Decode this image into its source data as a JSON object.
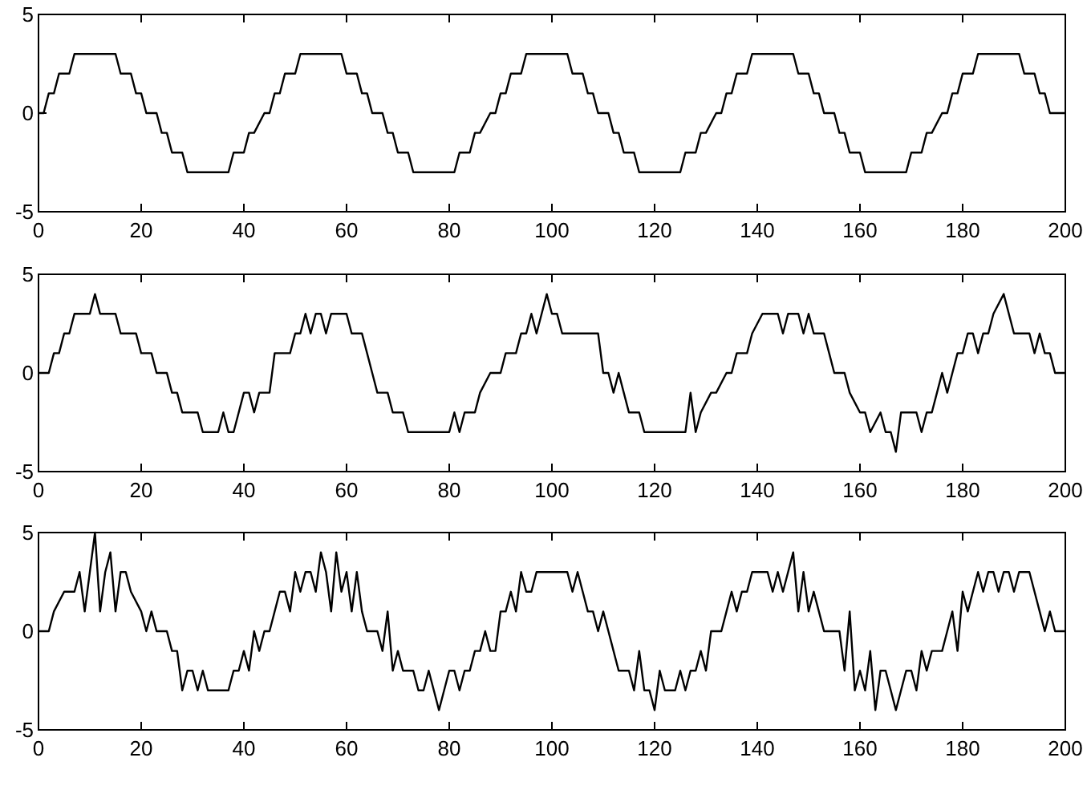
{
  "chart_data": [
    {
      "type": "line",
      "xlim": [
        0,
        200
      ],
      "ylim": [
        -5,
        5
      ],
      "xticks": [
        0,
        20,
        40,
        60,
        80,
        100,
        120,
        140,
        160,
        180,
        200
      ],
      "yticks": [
        -5,
        0,
        5
      ],
      "x": [
        0,
        1,
        2,
        3,
        4,
        6,
        7,
        15,
        16,
        18,
        19,
        20,
        21,
        23,
        24,
        25,
        26,
        28,
        29,
        37,
        38,
        40,
        41,
        42,
        44,
        45,
        46,
        47,
        48,
        50,
        51,
        59,
        60,
        62,
        63,
        64,
        65,
        67,
        68,
        69,
        70,
        72,
        73,
        81,
        82,
        84,
        85,
        86,
        88,
        89,
        90,
        91,
        92,
        94,
        95,
        103,
        104,
        106,
        107,
        108,
        109,
        111,
        112,
        113,
        114,
        116,
        117,
        125,
        126,
        128,
        129,
        130,
        132,
        133,
        134,
        135,
        136,
        138,
        139,
        147,
        148,
        150,
        151,
        152,
        153,
        155,
        156,
        157,
        158,
        160,
        161,
        169,
        170,
        172,
        173,
        174,
        176,
        177,
        178,
        179,
        180,
        182,
        183,
        191,
        192,
        194,
        195,
        196,
        197,
        199,
        200
      ],
      "series": [
        {
          "color": "#000000",
          "values": [
            0,
            0,
            1,
            1,
            2,
            2,
            3,
            3,
            2,
            2,
            1,
            1,
            0,
            0,
            -1,
            -1,
            -2,
            -2,
            -3,
            -3,
            -2,
            -2,
            -1,
            -1,
            0,
            0,
            1,
            1,
            2,
            2,
            3,
            3,
            2,
            2,
            1,
            1,
            0,
            0,
            -1,
            -1,
            -2,
            -2,
            -3,
            -3,
            -2,
            -2,
            -1,
            -1,
            0,
            0,
            1,
            1,
            2,
            2,
            3,
            3,
            2,
            2,
            1,
            1,
            0,
            0,
            -1,
            -1,
            -2,
            -2,
            -3,
            -3,
            -2,
            -2,
            -1,
            -1,
            0,
            0,
            1,
            1,
            2,
            2,
            3,
            3,
            2,
            2,
            1,
            1,
            0,
            0,
            -1,
            -1,
            -2,
            -2,
            -3,
            -3,
            -2,
            -2,
            -1,
            -1,
            0,
            0,
            1,
            1,
            2,
            2,
            3,
            3,
            2,
            2,
            1,
            1,
            0,
            0,
            0
          ]
        }
      ]
    },
    {
      "type": "line",
      "xlim": [
        0,
        200
      ],
      "ylim": [
        -5,
        5
      ],
      "xticks": [
        0,
        20,
        40,
        60,
        80,
        100,
        120,
        140,
        160,
        180,
        200
      ],
      "yticks": [
        -5,
        0,
        5
      ],
      "x": [
        0,
        2,
        3,
        4,
        5,
        6,
        7,
        10,
        11,
        12,
        15,
        16,
        19,
        20,
        22,
        23,
        25,
        26,
        27,
        28,
        31,
        32,
        35,
        36,
        37,
        38,
        40,
        41,
        42,
        43,
        45,
        46,
        47,
        49,
        50,
        51,
        52,
        53,
        54,
        55,
        56,
        57,
        60,
        61,
        63,
        64,
        65,
        66,
        68,
        69,
        71,
        72,
        80,
        81,
        82,
        83,
        85,
        86,
        88,
        90,
        91,
        93,
        94,
        95,
        96,
        97,
        98,
        99,
        100,
        101,
        102,
        109,
        110,
        111,
        112,
        113,
        114,
        115,
        117,
        118,
        126,
        127,
        128,
        129,
        131,
        132,
        134,
        135,
        136,
        138,
        139,
        141,
        144,
        145,
        146,
        148,
        149,
        150,
        151,
        153,
        154,
        155,
        157,
        158,
        160,
        161,
        162,
        164,
        165,
        166,
        167,
        168,
        171,
        172,
        173,
        174,
        175,
        176,
        177,
        178,
        179,
        180,
        181,
        182,
        183,
        184,
        185,
        186,
        188,
        189,
        190,
        193,
        194,
        195,
        196,
        197,
        198,
        200
      ],
      "series": [
        {
          "color": "#000000",
          "values": [
            0,
            0,
            1,
            1,
            2,
            2,
            3,
            3,
            4,
            3,
            3,
            2,
            2,
            1,
            1,
            0,
            0,
            -1,
            -1,
            -2,
            -2,
            -3,
            -3,
            -2,
            -3,
            -3,
            -1,
            -1,
            -2,
            -1,
            -1,
            1,
            1,
            1,
            2,
            2,
            3,
            2,
            3,
            3,
            2,
            3,
            3,
            2,
            2,
            1,
            0,
            -1,
            -1,
            -2,
            -2,
            -3,
            -3,
            -2,
            -3,
            -2,
            -2,
            -1,
            0,
            0,
            1,
            1,
            2,
            2,
            3,
            2,
            3,
            4,
            3,
            3,
            2,
            2,
            0,
            0,
            -1,
            0,
            -1,
            -2,
            -2,
            -3,
            -3,
            -1,
            -3,
            -2,
            -1,
            -1,
            0,
            0,
            1,
            1,
            2,
            3,
            3,
            2,
            3,
            3,
            2,
            3,
            2,
            2,
            1,
            0,
            0,
            -1,
            -2,
            -2,
            -3,
            -2,
            -3,
            -3,
            -4,
            -2,
            -2,
            -3,
            -2,
            -2,
            -1,
            0,
            -1,
            0,
            1,
            1,
            2,
            2,
            1,
            2,
            2,
            3,
            4,
            3,
            2,
            2,
            1,
            2,
            1,
            1,
            0,
            0
          ]
        }
      ]
    },
    {
      "type": "line",
      "xlim": [
        0,
        200
      ],
      "ylim": [
        -5,
        5
      ],
      "xticks": [
        0,
        20,
        40,
        60,
        80,
        100,
        120,
        140,
        160,
        180,
        200
      ],
      "yticks": [
        -5,
        0,
        5
      ],
      "x": [
        0,
        2,
        3,
        5,
        7,
        8,
        9,
        10,
        11,
        12,
        13,
        14,
        15,
        16,
        17,
        18,
        20,
        21,
        22,
        23,
        25,
        26,
        27,
        28,
        29,
        30,
        31,
        32,
        33,
        37,
        38,
        39,
        40,
        41,
        42,
        43,
        44,
        45,
        47,
        48,
        49,
        50,
        51,
        52,
        53,
        54,
        55,
        56,
        57,
        58,
        59,
        60,
        61,
        62,
        63,
        64,
        66,
        67,
        68,
        69,
        70,
        71,
        73,
        74,
        75,
        76,
        77,
        78,
        79,
        80,
        81,
        82,
        83,
        84,
        85,
        86,
        87,
        88,
        89,
        90,
        91,
        92,
        93,
        94,
        95,
        96,
        97,
        103,
        104,
        105,
        106,
        107,
        108,
        109,
        110,
        111,
        112,
        113,
        115,
        116,
        117,
        118,
        119,
        120,
        121,
        122,
        124,
        125,
        126,
        127,
        128,
        129,
        130,
        131,
        133,
        134,
        135,
        136,
        137,
        138,
        139,
        142,
        143,
        144,
        145,
        146,
        147,
        148,
        149,
        150,
        151,
        152,
        153,
        156,
        157,
        158,
        159,
        160,
        161,
        162,
        163,
        164,
        165,
        166,
        167,
        168,
        169,
        170,
        171,
        172,
        173,
        174,
        176,
        177,
        178,
        179,
        180,
        181,
        182,
        183,
        184,
        185,
        186,
        187,
        188,
        189,
        190,
        191,
        193,
        194,
        195,
        196,
        197,
        198,
        200
      ],
      "series": [
        {
          "color": "#000000",
          "values": [
            0,
            0,
            1,
            2,
            2,
            3,
            1,
            3,
            5,
            1,
            3,
            4,
            1,
            3,
            3,
            2,
            1,
            0,
            1,
            0,
            0,
            -1,
            -1,
            -3,
            -2,
            -2,
            -3,
            -2,
            -3,
            -3,
            -2,
            -2,
            -1,
            -2,
            0,
            -1,
            0,
            0,
            2,
            2,
            1,
            3,
            2,
            3,
            3,
            2,
            4,
            3,
            1,
            4,
            2,
            3,
            1,
            3,
            1,
            0,
            0,
            -1,
            1,
            -2,
            -1,
            -2,
            -2,
            -3,
            -3,
            -2,
            -3,
            -4,
            -3,
            -2,
            -2,
            -3,
            -2,
            -2,
            -1,
            -1,
            0,
            -1,
            -1,
            1,
            1,
            2,
            1,
            3,
            2,
            2,
            3,
            3,
            2,
            3,
            2,
            1,
            1,
            0,
            1,
            0,
            -1,
            -2,
            -2,
            -3,
            -1,
            -3,
            -3,
            -4,
            -2,
            -3,
            -3,
            -2,
            -3,
            -2,
            -2,
            -1,
            -2,
            0,
            0,
            1,
            2,
            1,
            2,
            2,
            3,
            3,
            2,
            3,
            2,
            3,
            4,
            1,
            3,
            1,
            2,
            1,
            0,
            0,
            -2,
            1,
            -3,
            -2,
            -3,
            -1,
            -4,
            -2,
            -2,
            -3,
            -4,
            -3,
            -2,
            -2,
            -3,
            -1,
            -2,
            -1,
            -1,
            0,
            1,
            -1,
            2,
            1,
            2,
            3,
            2,
            3,
            3,
            2,
            3,
            3,
            2,
            3,
            3,
            2,
            1,
            0,
            1,
            0,
            0
          ]
        }
      ]
    }
  ]
}
